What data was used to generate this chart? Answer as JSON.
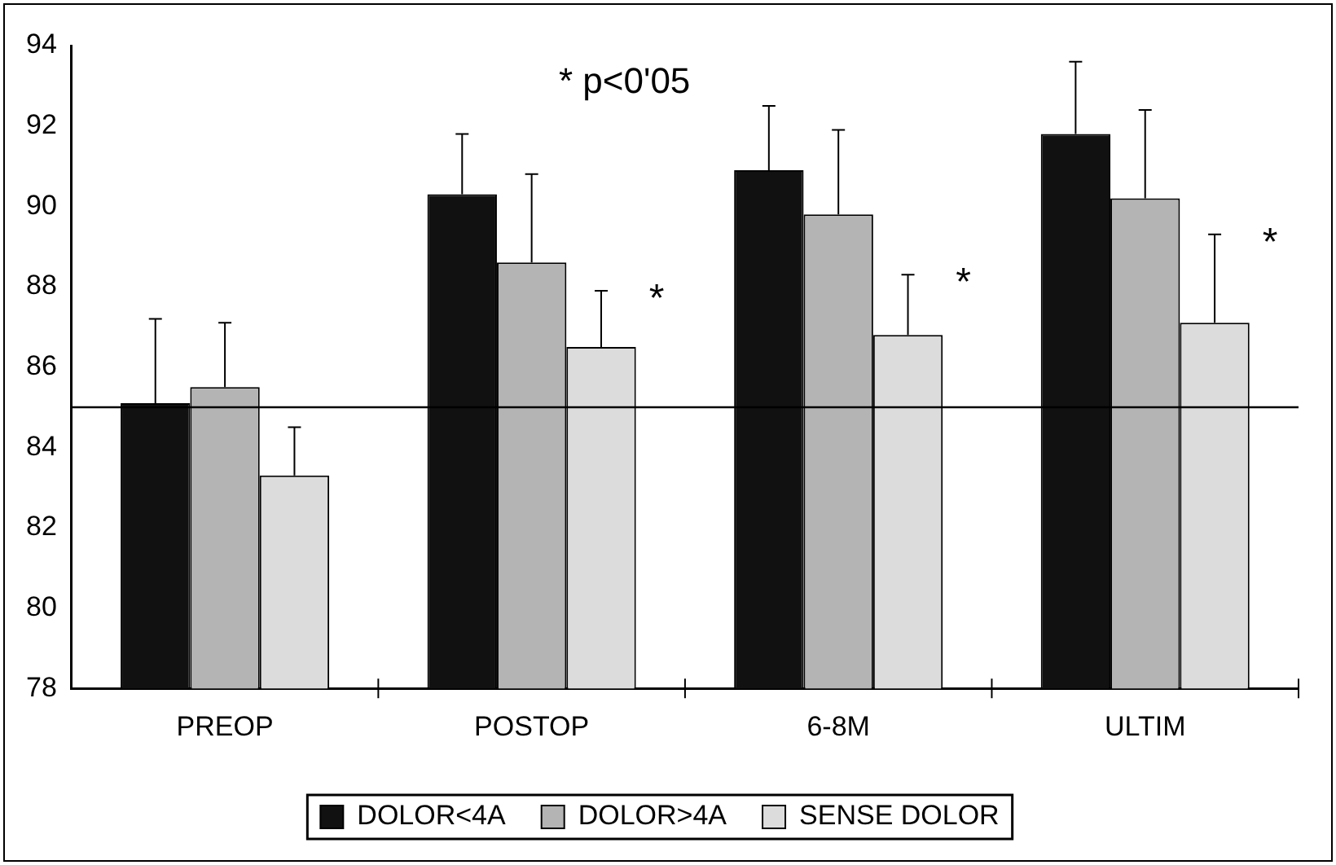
{
  "chart_data": {
    "type": "bar",
    "categories": [
      "PREOP",
      "POSTOP",
      "6-8M",
      "ULTIM"
    ],
    "series": [
      {
        "name": "DOLOR<4A",
        "color": "#111111",
        "values": [
          85.1,
          90.3,
          90.9,
          91.8
        ],
        "errors": [
          [
            85.1,
            87.2
          ],
          [
            90.3,
            91.8
          ],
          [
            90.9,
            92.5
          ],
          [
            91.8,
            93.6
          ]
        ]
      },
      {
        "name": "DOLOR>4A",
        "color": "#b4b4b4",
        "values": [
          85.5,
          88.6,
          89.8,
          90.2
        ],
        "errors": [
          [
            85.5,
            87.1
          ],
          [
            88.6,
            90.8
          ],
          [
            89.8,
            91.9
          ],
          [
            90.2,
            92.4
          ]
        ]
      },
      {
        "name": "SENSE DOLOR",
        "color": "#dcdcdc",
        "values": [
          83.3,
          86.5,
          86.8,
          87.1
        ],
        "errors": [
          [
            83.3,
            84.5
          ],
          [
            86.5,
            87.9
          ],
          [
            86.8,
            88.3
          ],
          [
            87.1,
            89.3
          ]
        ]
      }
    ],
    "ylim": [
      78,
      94
    ],
    "yticks": [
      78,
      80,
      82,
      84,
      86,
      88,
      90,
      92,
      94
    ],
    "grid": false,
    "legend": "bottom",
    "ref_lines": [
      {
        "axis": "y",
        "value": 85,
        "color": "#000000"
      }
    ],
    "annotations": [
      "* p<0'05",
      "*",
      "*",
      "*"
    ]
  }
}
